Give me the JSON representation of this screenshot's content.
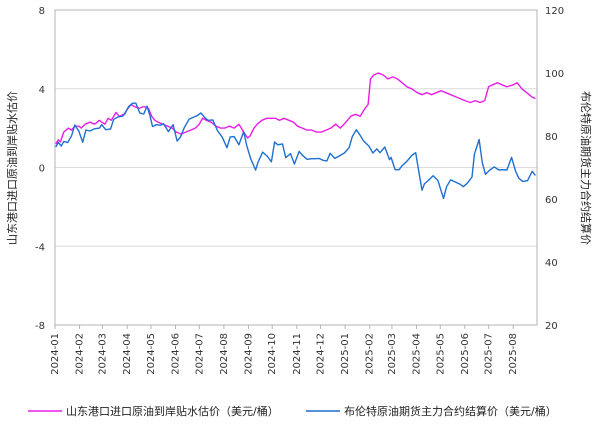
{
  "chart_data": {
    "type": "line",
    "ylabel_left": "山东港口进口原油到岸贴水估价",
    "ylabel_right": "布伦特原油期货主力合约结算价",
    "ylim_left": [
      -8,
      8
    ],
    "yticks_left": [
      "8",
      "4",
      "0",
      "-4",
      "-8"
    ],
    "ylim_right": [
      20,
      120
    ],
    "yticks_right": [
      "120",
      "100",
      "80",
      "60",
      "40",
      "20"
    ],
    "x_range": [
      "2024-01-01",
      "2025-08-31"
    ],
    "x_tick_labels": [
      "2024-01",
      "2024-02",
      "2024-03",
      "2024-04",
      "2024-05",
      "2024-06",
      "2024-07",
      "2024-08",
      "2024-09",
      "2024-10",
      "2024-11",
      "2024-12",
      "2025-01",
      "2025-02",
      "2025-03",
      "2025-04",
      "2025-05",
      "2025-06",
      "2025-07",
      "2025-08"
    ],
    "grid": "horizontal",
    "legend_position": "bottom",
    "series": [
      {
        "name": "山东港口进口原油到岸贴水估价（美元/桶）",
        "axis": "left",
        "color": "#e81ee8",
        "points": [
          [
            "2024-01-02",
            1.2
          ],
          [
            "2024-01-05",
            1.4
          ],
          [
            "2024-01-08",
            1.3
          ],
          [
            "2024-01-12",
            1.8
          ],
          [
            "2024-01-18",
            2.0
          ],
          [
            "2024-01-22",
            1.9
          ],
          [
            "2024-01-26",
            2.1
          ],
          [
            "2024-01-31",
            2.1
          ],
          [
            "2024-02-03",
            2.0
          ],
          [
            "2024-02-08",
            2.2
          ],
          [
            "2024-02-14",
            2.3
          ],
          [
            "2024-02-20",
            2.2
          ],
          [
            "2024-02-26",
            2.4
          ],
          [
            "2024-02-29",
            2.3
          ],
          [
            "2024-03-04",
            2.2
          ],
          [
            "2024-03-08",
            2.5
          ],
          [
            "2024-03-12",
            2.4
          ],
          [
            "2024-03-18",
            2.8
          ],
          [
            "2024-03-22",
            2.6
          ],
          [
            "2024-03-28",
            2.7
          ],
          [
            "2024-04-02",
            3.0
          ],
          [
            "2024-04-06",
            3.2
          ],
          [
            "2024-04-10",
            3.1
          ],
          [
            "2024-04-16",
            3.0
          ],
          [
            "2024-04-22",
            3.1
          ],
          [
            "2024-04-28",
            3.0
          ],
          [
            "2024-05-02",
            2.6
          ],
          [
            "2024-05-06",
            2.4
          ],
          [
            "2024-05-10",
            2.3
          ],
          [
            "2024-05-16",
            2.2
          ],
          [
            "2024-05-22",
            2.1
          ],
          [
            "2024-05-28",
            2.0
          ],
          [
            "2024-06-02",
            1.8
          ],
          [
            "2024-06-08",
            1.7
          ],
          [
            "2024-06-14",
            1.8
          ],
          [
            "2024-06-20",
            1.9
          ],
          [
            "2024-06-26",
            2.0
          ],
          [
            "2024-07-01",
            2.2
          ],
          [
            "2024-07-05",
            2.5
          ],
          [
            "2024-07-10",
            2.4
          ],
          [
            "2024-07-16",
            2.3
          ],
          [
            "2024-07-22",
            2.1
          ],
          [
            "2024-07-28",
            2.0
          ],
          [
            "2024-08-02",
            2.0
          ],
          [
            "2024-08-08",
            2.1
          ],
          [
            "2024-08-14",
            2.0
          ],
          [
            "2024-08-20",
            2.2
          ],
          [
            "2024-08-26",
            1.8
          ],
          [
            "2024-08-31",
            1.5
          ],
          [
            "2024-09-03",
            1.6
          ],
          [
            "2024-09-08",
            2.0
          ],
          [
            "2024-09-12",
            2.2
          ],
          [
            "2024-09-18",
            2.4
          ],
          [
            "2024-09-24",
            2.5
          ],
          [
            "2024-09-30",
            2.5
          ],
          [
            "2024-10-05",
            2.5
          ],
          [
            "2024-10-10",
            2.4
          ],
          [
            "2024-10-16",
            2.5
          ],
          [
            "2024-10-22",
            2.4
          ],
          [
            "2024-10-28",
            2.3
          ],
          [
            "2024-11-02",
            2.1
          ],
          [
            "2024-11-08",
            2.0
          ],
          [
            "2024-11-14",
            1.9
          ],
          [
            "2024-11-20",
            1.9
          ],
          [
            "2024-11-26",
            1.8
          ],
          [
            "2024-12-02",
            1.8
          ],
          [
            "2024-12-08",
            1.9
          ],
          [
            "2024-12-14",
            2.0
          ],
          [
            "2024-12-20",
            2.2
          ],
          [
            "2024-12-26",
            2.0
          ],
          [
            "2025-01-02",
            2.3
          ],
          [
            "2025-01-08",
            2.6
          ],
          [
            "2025-01-14",
            2.7
          ],
          [
            "2025-01-20",
            2.6
          ],
          [
            "2025-01-26",
            3.0
          ],
          [
            "2025-01-30",
            3.2
          ],
          [
            "2025-02-02",
            4.5
          ],
          [
            "2025-02-06",
            4.7
          ],
          [
            "2025-02-12",
            4.8
          ],
          [
            "2025-02-18",
            4.7
          ],
          [
            "2025-02-24",
            4.5
          ],
          [
            "2025-03-02",
            4.6
          ],
          [
            "2025-03-08",
            4.5
          ],
          [
            "2025-03-14",
            4.3
          ],
          [
            "2025-03-20",
            4.1
          ],
          [
            "2025-03-26",
            4.0
          ],
          [
            "2025-04-02",
            3.8
          ],
          [
            "2025-04-08",
            3.7
          ],
          [
            "2025-04-14",
            3.8
          ],
          [
            "2025-04-20",
            3.7
          ],
          [
            "2025-04-26",
            3.8
          ],
          [
            "2025-05-02",
            3.9
          ],
          [
            "2025-05-08",
            3.8
          ],
          [
            "2025-05-14",
            3.7
          ],
          [
            "2025-05-20",
            3.6
          ],
          [
            "2025-05-26",
            3.5
          ],
          [
            "2025-06-01",
            3.4
          ],
          [
            "2025-06-08",
            3.3
          ],
          [
            "2025-06-14",
            3.4
          ],
          [
            "2025-06-20",
            3.3
          ],
          [
            "2025-06-26",
            3.4
          ],
          [
            "2025-07-01",
            4.1
          ],
          [
            "2025-07-06",
            4.2
          ],
          [
            "2025-07-12",
            4.3
          ],
          [
            "2025-07-18",
            4.2
          ],
          [
            "2025-07-24",
            4.1
          ],
          [
            "2025-08-01",
            4.2
          ],
          [
            "2025-08-06",
            4.3
          ],
          [
            "2025-08-12",
            4.0
          ],
          [
            "2025-08-18",
            3.8
          ],
          [
            "2025-08-24",
            3.6
          ],
          [
            "2025-08-29",
            3.5
          ]
        ]
      },
      {
        "name": "布伦特原油期货主力合约结算价（美元/桶）",
        "axis": "right",
        "color": "#1f6fd1",
        "points": [
          [
            "2024-01-02",
            76.5
          ],
          [
            "2024-01-05",
            78.0
          ],
          [
            "2024-01-09",
            76.8
          ],
          [
            "2024-01-12",
            78.3
          ],
          [
            "2024-01-17",
            77.9
          ],
          [
            "2024-01-22",
            80.1
          ],
          [
            "2024-01-26",
            83.5
          ],
          [
            "2024-01-31",
            81.6
          ],
          [
            "2024-02-05",
            78.0
          ],
          [
            "2024-02-09",
            81.9
          ],
          [
            "2024-02-14",
            81.6
          ],
          [
            "2024-02-20",
            82.3
          ],
          [
            "2024-02-26",
            82.5
          ],
          [
            "2024-02-29",
            83.6
          ],
          [
            "2024-03-05",
            82.0
          ],
          [
            "2024-03-11",
            82.2
          ],
          [
            "2024-03-15",
            85.3
          ],
          [
            "2024-03-20",
            86.0
          ],
          [
            "2024-03-26",
            86.3
          ],
          [
            "2024-03-29",
            87.0
          ],
          [
            "2024-04-03",
            89.4
          ],
          [
            "2024-04-08",
            90.4
          ],
          [
            "2024-04-12",
            90.4
          ],
          [
            "2024-04-17",
            87.3
          ],
          [
            "2024-04-22",
            87.0
          ],
          [
            "2024-04-26",
            89.5
          ],
          [
            "2024-04-30",
            86.3
          ],
          [
            "2024-05-03",
            83.0
          ],
          [
            "2024-05-08",
            83.6
          ],
          [
            "2024-05-13",
            83.4
          ],
          [
            "2024-05-17",
            83.9
          ],
          [
            "2024-05-23",
            81.4
          ],
          [
            "2024-05-29",
            83.6
          ],
          [
            "2024-06-03",
            78.4
          ],
          [
            "2024-06-07",
            79.6
          ],
          [
            "2024-06-12",
            82.6
          ],
          [
            "2024-06-18",
            85.3
          ],
          [
            "2024-06-24",
            86.0
          ],
          [
            "2024-06-28",
            86.4
          ],
          [
            "2024-07-03",
            87.3
          ],
          [
            "2024-07-08",
            85.8
          ],
          [
            "2024-07-12",
            85.0
          ],
          [
            "2024-07-18",
            85.1
          ],
          [
            "2024-07-24",
            81.7
          ],
          [
            "2024-07-30",
            79.6
          ],
          [
            "2024-08-05",
            76.3
          ],
          [
            "2024-08-09",
            79.7
          ],
          [
            "2024-08-14",
            79.8
          ],
          [
            "2024-08-20",
            77.2
          ],
          [
            "2024-08-26",
            81.4
          ],
          [
            "2024-08-30",
            76.9
          ],
          [
            "2024-09-04",
            72.7
          ],
          [
            "2024-09-10",
            69.2
          ],
          [
            "2024-09-13",
            71.6
          ],
          [
            "2024-09-19",
            74.9
          ],
          [
            "2024-09-25",
            73.5
          ],
          [
            "2024-09-30",
            71.8
          ],
          [
            "2024-10-04",
            78.1
          ],
          [
            "2024-10-08",
            77.2
          ],
          [
            "2024-10-14",
            77.5
          ],
          [
            "2024-10-18",
            73.1
          ],
          [
            "2024-10-24",
            74.4
          ],
          [
            "2024-10-29",
            71.1
          ],
          [
            "2024-11-04",
            75.1
          ],
          [
            "2024-11-08",
            73.9
          ],
          [
            "2024-11-14",
            72.6
          ],
          [
            "2024-11-20",
            72.8
          ],
          [
            "2024-11-26",
            72.8
          ],
          [
            "2024-11-29",
            72.9
          ],
          [
            "2024-12-04",
            72.3
          ],
          [
            "2024-12-09",
            72.1
          ],
          [
            "2024-12-13",
            74.5
          ],
          [
            "2024-12-19",
            72.9
          ],
          [
            "2024-12-24",
            73.6
          ],
          [
            "2024-12-31",
            74.6
          ],
          [
            "2025-01-06",
            76.3
          ],
          [
            "2025-01-10",
            79.8
          ],
          [
            "2025-01-15",
            82.0
          ],
          [
            "2025-01-20",
            80.2
          ],
          [
            "2025-01-24",
            78.5
          ],
          [
            "2025-01-31",
            76.8
          ],
          [
            "2025-02-05",
            74.6
          ],
          [
            "2025-02-10",
            75.9
          ],
          [
            "2025-02-14",
            74.7
          ],
          [
            "2025-02-20",
            76.5
          ],
          [
            "2025-02-26",
            72.5
          ],
          [
            "2025-02-28",
            73.2
          ],
          [
            "2025-03-05",
            69.3
          ],
          [
            "2025-03-10",
            69.3
          ],
          [
            "2025-03-14",
            70.6
          ],
          [
            "2025-03-20",
            72.0
          ],
          [
            "2025-03-26",
            73.8
          ],
          [
            "2025-03-31",
            74.7
          ],
          [
            "2025-04-03",
            70.1
          ],
          [
            "2025-04-08",
            62.8
          ],
          [
            "2025-04-11",
            64.8
          ],
          [
            "2025-04-16",
            65.9
          ],
          [
            "2025-04-22",
            67.4
          ],
          [
            "2025-04-28",
            65.9
          ],
          [
            "2025-05-05",
            60.2
          ],
          [
            "2025-05-09",
            63.9
          ],
          [
            "2025-05-14",
            66.1
          ],
          [
            "2025-05-20",
            65.4
          ],
          [
            "2025-05-26",
            64.7
          ],
          [
            "2025-05-30",
            63.9
          ],
          [
            "2025-06-04",
            65.0
          ],
          [
            "2025-06-10",
            67.0
          ],
          [
            "2025-06-13",
            74.2
          ],
          [
            "2025-06-19",
            78.9
          ],
          [
            "2025-06-23",
            71.5
          ],
          [
            "2025-06-27",
            67.8
          ],
          [
            "2025-07-02",
            69.1
          ],
          [
            "2025-07-08",
            70.2
          ],
          [
            "2025-07-14",
            69.2
          ],
          [
            "2025-07-18",
            69.3
          ],
          [
            "2025-07-24",
            69.2
          ],
          [
            "2025-07-30",
            73.2
          ],
          [
            "2025-08-04",
            68.8
          ],
          [
            "2025-08-08",
            66.6
          ],
          [
            "2025-08-13",
            65.6
          ],
          [
            "2025-08-19",
            65.8
          ],
          [
            "2025-08-25",
            68.8
          ],
          [
            "2025-08-29",
            67.5
          ]
        ]
      }
    ]
  }
}
